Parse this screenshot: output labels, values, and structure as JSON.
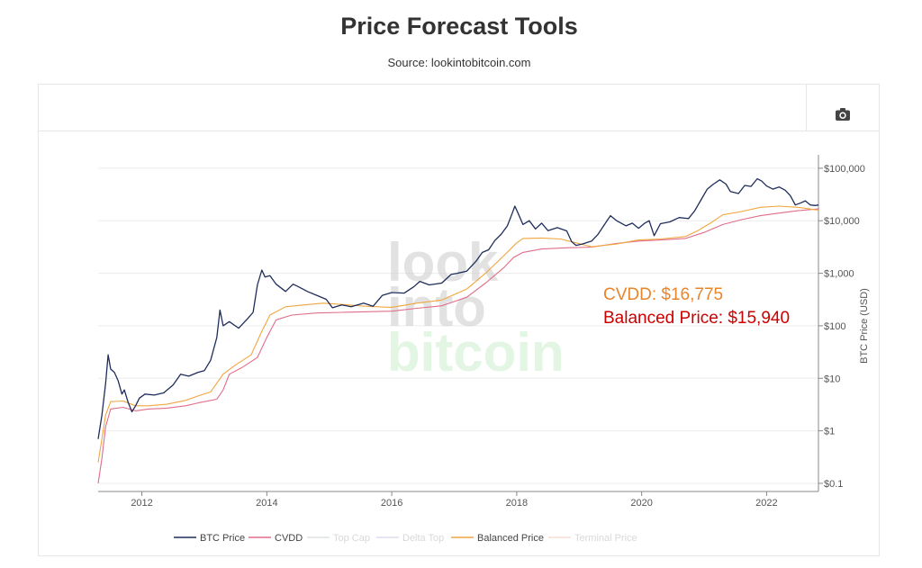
{
  "header": {
    "title": "Price Forecast Tools",
    "source": "Source: lookintobitcoin.com"
  },
  "toolbar": {
    "camera_icon": "camera-icon"
  },
  "watermark": {
    "lines": [
      "look",
      "into",
      "bitcoin"
    ]
  },
  "annotations": {
    "cvdd": "CVDD: $16,775",
    "balanced": "Balanced Price: $15,940",
    "cvdd_color": "#e8852b",
    "balanced_color": "#cc0000"
  },
  "chart_data": {
    "type": "line",
    "title": "Price Forecast Tools",
    "xlabel": "",
    "ylabel": "BTC Price (USD)",
    "y_scale": "log",
    "xlim": [
      2011.3,
      2022.83
    ],
    "ylim": [
      0.07,
      180000
    ],
    "x_ticks": [
      {
        "value": 2012,
        "label": "2012"
      },
      {
        "value": 2014,
        "label": "2014"
      },
      {
        "value": 2016,
        "label": "2016"
      },
      {
        "value": 2018,
        "label": "2018"
      },
      {
        "value": 2020,
        "label": "2020"
      },
      {
        "value": 2022,
        "label": "2022"
      }
    ],
    "y_ticks": [
      {
        "value": 0.1,
        "label": "$0.1"
      },
      {
        "value": 1,
        "label": "$1"
      },
      {
        "value": 10,
        "label": "$10"
      },
      {
        "value": 100,
        "label": "$100"
      },
      {
        "value": 1000,
        "label": "$1,000"
      },
      {
        "value": 10000,
        "label": "$10,000"
      },
      {
        "value": 100000,
        "label": "$100,000"
      }
    ],
    "grid": true,
    "legend_position": "bottom",
    "series": [
      {
        "name": "BTC Price",
        "color": "#1f2d5c",
        "visible": true,
        "points": [
          [
            2011.3,
            0.7
          ],
          [
            2011.36,
            2
          ],
          [
            2011.42,
            8
          ],
          [
            2011.46,
            28
          ],
          [
            2011.5,
            15
          ],
          [
            2011.56,
            13
          ],
          [
            2011.62,
            9
          ],
          [
            2011.68,
            5
          ],
          [
            2011.72,
            6
          ],
          [
            2011.78,
            3.5
          ],
          [
            2011.84,
            2.3
          ],
          [
            2011.9,
            3
          ],
          [
            2011.96,
            4.2
          ],
          [
            2012.05,
            5
          ],
          [
            2012.2,
            4.8
          ],
          [
            2012.35,
            5.3
          ],
          [
            2012.5,
            7.5
          ],
          [
            2012.62,
            12
          ],
          [
            2012.75,
            11
          ],
          [
            2012.9,
            13
          ],
          [
            2013.0,
            14
          ],
          [
            2013.1,
            22
          ],
          [
            2013.2,
            60
          ],
          [
            2013.25,
            200
          ],
          [
            2013.3,
            100
          ],
          [
            2013.4,
            120
          ],
          [
            2013.55,
            90
          ],
          [
            2013.7,
            140
          ],
          [
            2013.78,
            180
          ],
          [
            2013.85,
            600
          ],
          [
            2013.92,
            1150
          ],
          [
            2013.97,
            850
          ],
          [
            2014.05,
            900
          ],
          [
            2014.15,
            620
          ],
          [
            2014.3,
            450
          ],
          [
            2014.42,
            620
          ],
          [
            2014.5,
            560
          ],
          [
            2014.65,
            450
          ],
          [
            2014.8,
            380
          ],
          [
            2014.95,
            320
          ],
          [
            2015.05,
            220
          ],
          [
            2015.2,
            250
          ],
          [
            2015.35,
            230
          ],
          [
            2015.55,
            270
          ],
          [
            2015.7,
            235
          ],
          [
            2015.85,
            380
          ],
          [
            2016.0,
            430
          ],
          [
            2016.2,
            420
          ],
          [
            2016.35,
            550
          ],
          [
            2016.45,
            700
          ],
          [
            2016.6,
            600
          ],
          [
            2016.8,
            650
          ],
          [
            2016.95,
            950
          ],
          [
            2017.05,
            1000
          ],
          [
            2017.2,
            1100
          ],
          [
            2017.35,
            1700
          ],
          [
            2017.45,
            2500
          ],
          [
            2017.55,
            2800
          ],
          [
            2017.65,
            4200
          ],
          [
            2017.75,
            5500
          ],
          [
            2017.85,
            8000
          ],
          [
            2017.93,
            14000
          ],
          [
            2017.97,
            19000
          ],
          [
            2018.02,
            14000
          ],
          [
            2018.1,
            8500
          ],
          [
            2018.2,
            10000
          ],
          [
            2018.3,
            7000
          ],
          [
            2018.4,
            9000
          ],
          [
            2018.5,
            6500
          ],
          [
            2018.65,
            7400
          ],
          [
            2018.8,
            6400
          ],
          [
            2018.88,
            4000
          ],
          [
            2018.95,
            3400
          ],
          [
            2019.05,
            3600
          ],
          [
            2019.2,
            4100
          ],
          [
            2019.3,
            5500
          ],
          [
            2019.42,
            9000
          ],
          [
            2019.5,
            12500
          ],
          [
            2019.6,
            10000
          ],
          [
            2019.75,
            8000
          ],
          [
            2019.85,
            9000
          ],
          [
            2019.95,
            7200
          ],
          [
            2020.05,
            9000
          ],
          [
            2020.12,
            10000
          ],
          [
            2020.2,
            5200
          ],
          [
            2020.3,
            8800
          ],
          [
            2020.45,
            9500
          ],
          [
            2020.6,
            11500
          ],
          [
            2020.75,
            11000
          ],
          [
            2020.85,
            15500
          ],
          [
            2020.95,
            25000
          ],
          [
            2021.05,
            40000
          ],
          [
            2021.15,
            50000
          ],
          [
            2021.25,
            60000
          ],
          [
            2021.35,
            50000
          ],
          [
            2021.42,
            36000
          ],
          [
            2021.55,
            33000
          ],
          [
            2021.65,
            47000
          ],
          [
            2021.75,
            45000
          ],
          [
            2021.85,
            63000
          ],
          [
            2021.92,
            57000
          ],
          [
            2022.0,
            46000
          ],
          [
            2022.1,
            40000
          ],
          [
            2022.2,
            44000
          ],
          [
            2022.3,
            38000
          ],
          [
            2022.38,
            30000
          ],
          [
            2022.46,
            20000
          ],
          [
            2022.55,
            22000
          ],
          [
            2022.62,
            24000
          ],
          [
            2022.7,
            20000
          ],
          [
            2022.78,
            19500
          ],
          [
            2022.83,
            20000
          ]
        ]
      },
      {
        "name": "CVDD",
        "color": "#e06d8a",
        "visible": true,
        "points": [
          [
            2011.3,
            0.1
          ],
          [
            2011.36,
            0.3
          ],
          [
            2011.42,
            1.2
          ],
          [
            2011.5,
            2.6
          ],
          [
            2011.7,
            2.8
          ],
          [
            2011.9,
            2.4
          ],
          [
            2012.1,
            2.6
          ],
          [
            2012.4,
            2.7
          ],
          [
            2012.7,
            3
          ],
          [
            2012.9,
            3.4
          ],
          [
            2013.2,
            4
          ],
          [
            2013.3,
            6
          ],
          [
            2013.4,
            12
          ],
          [
            2013.6,
            16
          ],
          [
            2013.85,
            25
          ],
          [
            2014.0,
            60
          ],
          [
            2014.15,
            130
          ],
          [
            2014.4,
            160
          ],
          [
            2014.8,
            175
          ],
          [
            2015.2,
            180
          ],
          [
            2015.6,
            185
          ],
          [
            2016.0,
            190
          ],
          [
            2016.4,
            215
          ],
          [
            2016.8,
            240
          ],
          [
            2017.2,
            350
          ],
          [
            2017.5,
            650
          ],
          [
            2017.8,
            1300
          ],
          [
            2017.95,
            2000
          ],
          [
            2018.1,
            2500
          ],
          [
            2018.4,
            2900
          ],
          [
            2018.8,
            3050
          ],
          [
            2019.2,
            3150
          ],
          [
            2019.6,
            3700
          ],
          [
            2019.95,
            4100
          ],
          [
            2020.3,
            4300
          ],
          [
            2020.7,
            4600
          ],
          [
            2021.0,
            6000
          ],
          [
            2021.3,
            8500
          ],
          [
            2021.6,
            10500
          ],
          [
            2021.9,
            12500
          ],
          [
            2022.2,
            14000
          ],
          [
            2022.5,
            15500
          ],
          [
            2022.83,
            16775
          ]
        ]
      },
      {
        "name": "Top Cap",
        "color": "#b8c4b8",
        "visible": false,
        "points": []
      },
      {
        "name": "Delta Top",
        "color": "#b8b8d8",
        "visible": false,
        "points": []
      },
      {
        "name": "Balanced Price",
        "color": "#f0a640",
        "visible": true,
        "points": [
          [
            2011.3,
            0.25
          ],
          [
            2011.36,
            0.7
          ],
          [
            2011.42,
            2
          ],
          [
            2011.5,
            3.6
          ],
          [
            2011.7,
            3.7
          ],
          [
            2011.9,
            3
          ],
          [
            2012.1,
            3
          ],
          [
            2012.4,
            3.2
          ],
          [
            2012.7,
            3.8
          ],
          [
            2012.9,
            4.6
          ],
          [
            2013.1,
            5.5
          ],
          [
            2013.3,
            12
          ],
          [
            2013.5,
            18
          ],
          [
            2013.75,
            28
          ],
          [
            2013.9,
            70
          ],
          [
            2014.05,
            160
          ],
          [
            2014.3,
            230
          ],
          [
            2014.6,
            250
          ],
          [
            2014.9,
            270
          ],
          [
            2015.2,
            255
          ],
          [
            2015.6,
            235
          ],
          [
            2016.0,
            225
          ],
          [
            2016.4,
            270
          ],
          [
            2016.8,
            310
          ],
          [
            2017.2,
            500
          ],
          [
            2017.5,
            1000
          ],
          [
            2017.8,
            2200
          ],
          [
            2018.0,
            3800
          ],
          [
            2018.1,
            4600
          ],
          [
            2018.4,
            4700
          ],
          [
            2018.7,
            4500
          ],
          [
            2018.95,
            3800
          ],
          [
            2019.2,
            3200
          ],
          [
            2019.6,
            3600
          ],
          [
            2019.95,
            4300
          ],
          [
            2020.3,
            4500
          ],
          [
            2020.7,
            5000
          ],
          [
            2020.9,
            6500
          ],
          [
            2021.1,
            9000
          ],
          [
            2021.3,
            13000
          ],
          [
            2021.6,
            15000
          ],
          [
            2021.9,
            18000
          ],
          [
            2022.2,
            19000
          ],
          [
            2022.5,
            18000
          ],
          [
            2022.83,
            15940
          ]
        ]
      },
      {
        "name": "Terminal Price",
        "color": "#f0b8a8",
        "visible": false,
        "points": []
      }
    ]
  }
}
